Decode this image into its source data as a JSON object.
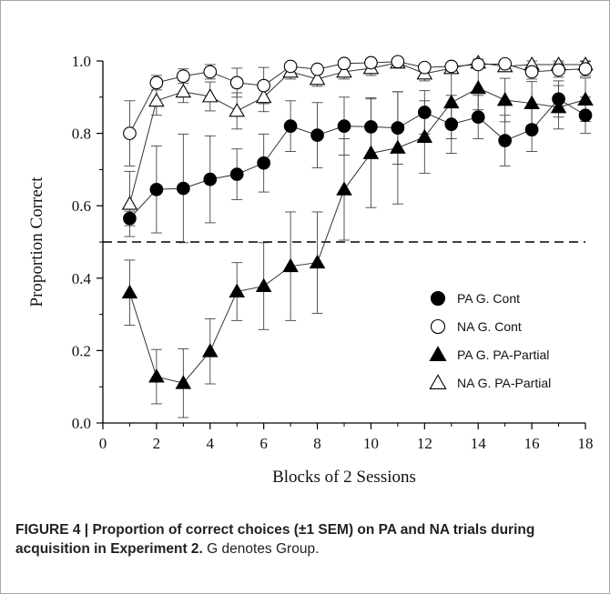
{
  "chart_data": {
    "type": "line",
    "xlabel": "Blocks of 2 Sessions",
    "ylabel": "Proportion Correct",
    "xlim": [
      0,
      18
    ],
    "ylim": [
      0.0,
      1.0
    ],
    "xticks": [
      "0",
      "2",
      "4",
      "6",
      "8",
      "10",
      "12",
      "14",
      "16",
      "18"
    ],
    "yticks": [
      "0.0",
      "0.2",
      "0.4",
      "0.6",
      "0.8",
      "1.0"
    ],
    "reference_line": {
      "y": 0.5,
      "style": "dashed"
    },
    "legend_position": "lower-right",
    "x": [
      1,
      2,
      3,
      4,
      5,
      6,
      7,
      8,
      9,
      10,
      11,
      12,
      13,
      14,
      15,
      16,
      17,
      18
    ],
    "series": [
      {
        "name": "PA G. Cont",
        "marker": "filled-circle",
        "values": [
          0.565,
          0.645,
          0.648,
          0.673,
          0.687,
          0.718,
          0.82,
          0.795,
          0.82,
          0.818,
          0.815,
          0.858,
          0.825,
          0.845,
          0.78,
          0.81,
          0.895,
          0.85
        ],
        "errors": [
          0.02,
          0.12,
          0.15,
          0.12,
          0.07,
          0.08,
          0.07,
          0.09,
          0.08,
          0.08,
          0.1,
          0.06,
          0.08,
          0.06,
          0.07,
          0.06,
          0.05,
          0.05
        ]
      },
      {
        "name": "NA G. Cont",
        "marker": "open-circle",
        "values": [
          0.8,
          0.94,
          0.958,
          0.97,
          0.94,
          0.932,
          0.985,
          0.977,
          0.993,
          0.995,
          0.998,
          0.982,
          0.985,
          0.99,
          0.992,
          0.97,
          0.975,
          0.978
        ],
        "errors": [
          0.09,
          0.02,
          0.02,
          0.02,
          0.04,
          0.05,
          0.01,
          0.01,
          0.01,
          0.01,
          0.01,
          0.01,
          0.01,
          0.01,
          0.01,
          0.02,
          0.02,
          0.02
        ]
      },
      {
        "name": "PA G. PA-Partial",
        "marker": "filled-triangle",
        "values": [
          0.36,
          0.128,
          0.11,
          0.198,
          0.363,
          0.378,
          0.433,
          0.443,
          0.645,
          0.745,
          0.76,
          0.79,
          0.885,
          0.925,
          0.892,
          0.883,
          0.872,
          0.893
        ],
        "errors": [
          0.09,
          0.075,
          0.095,
          0.09,
          0.08,
          0.12,
          0.15,
          0.14,
          0.14,
          0.15,
          0.155,
          0.1,
          0.1,
          0.06,
          0.06,
          0.06,
          0.06,
          0.06
        ]
      },
      {
        "name": "NA G. PA-Partial",
        "marker": "open-triangle",
        "values": [
          0.605,
          0.89,
          0.915,
          0.902,
          0.862,
          0.9,
          0.97,
          0.95,
          0.97,
          0.98,
          0.995,
          0.965,
          0.98,
          0.995,
          0.985,
          0.99,
          0.99,
          0.99
        ],
        "errors": [
          0.09,
          0.04,
          0.03,
          0.04,
          0.05,
          0.04,
          0.02,
          0.02,
          0.02,
          0.02,
          0.01,
          0.02,
          0.01,
          0.01,
          0.01,
          0.01,
          0.01,
          0.01
        ]
      }
    ]
  },
  "caption": {
    "figure_label": "FIGURE 4 | ",
    "bold_text": "Proportion of correct choices (±1 SEM) on PA and NA trials during acquisition in Experiment 2.",
    "normal_text": " G denotes Group."
  }
}
